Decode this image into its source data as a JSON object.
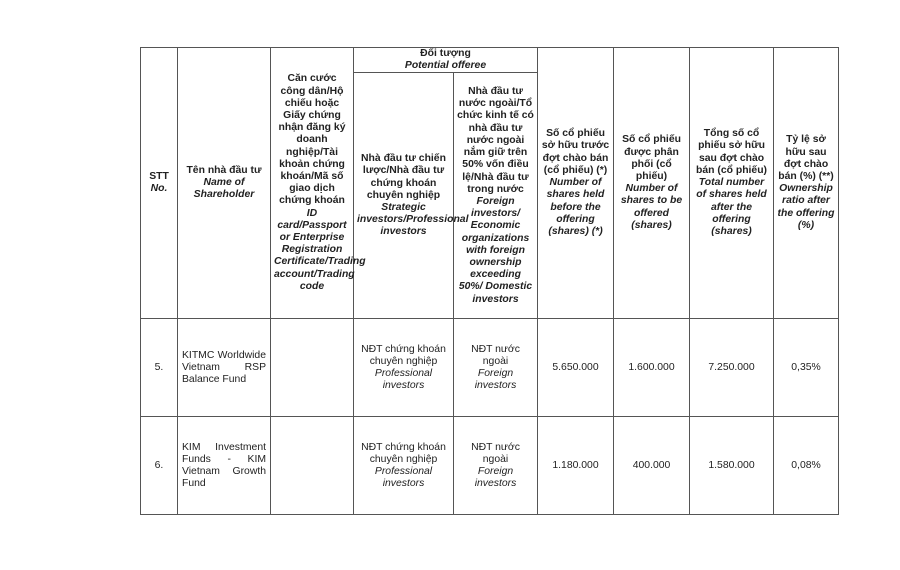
{
  "table": {
    "headers": {
      "stt": {
        "vn": "STT",
        "en": "No."
      },
      "name": {
        "vn": "Tên nhà đầu tư",
        "en": "Name of Shareholder"
      },
      "id": {
        "vn": "Căn cước công dân/Hộ chiếu hoặc Giấy chứng nhận đăng ký doanh nghiệp/Tài khoản chứng khoán/Mã số giao dịch chứng khoán",
        "en": "ID card/Passport or Enterprise Registration Certificate/Trading account/Trading code"
      },
      "offeree": {
        "vn": "Đối tượng",
        "en": "Potential offeree"
      },
      "strategic": {
        "vn": "Nhà đầu tư chiến lược/Nhà đầu tư chứng khoán chuyên nghiệp",
        "en": "Strategic investors/Professional investors"
      },
      "foreign": {
        "vn": "Nhà đầu tư nước ngoài/Tổ chức kinh tế có nhà đầu tư nước ngoài nắm giữ trên 50% vốn điều lệ/Nhà đầu tư trong nước",
        "en": "Foreign investors/ Economic organizations with foreign ownership exceeding 50%/ Domestic investors"
      },
      "before": {
        "vn": "Số cổ phiếu sở hữu trước đợt chào bán (cổ phiếu) (*)",
        "en": "Number of shares held before the offering (shares) (*)"
      },
      "offered": {
        "vn": "Số cổ phiếu được phân phối (cổ phiếu)",
        "en": "Number of shares to be offered (shares)"
      },
      "total": {
        "vn": "Tổng số cổ phiếu sở hữu sau đợt chào bán (cổ phiếu)",
        "en": "Total number of shares held after the offering (shares)"
      },
      "ratio": {
        "vn": "Tỷ lệ sở hữu sau đợt chào bán (%) (**)",
        "en": "Ownership ratio after the offering (%)"
      }
    },
    "rows": [
      {
        "stt": "5.",
        "name": "KITMC Worldwide Vietnam RSP Balance Fund",
        "id": "",
        "strategic_vn": "NĐT chứng khoán chuyên nghiệp",
        "strategic_en": "Professional investors",
        "foreign_vn": "NĐT nước ngoài",
        "foreign_en": "Foreign investors",
        "before": "5.650.000",
        "offered": "1.600.000",
        "total": "7.250.000",
        "ratio": "0,35%"
      },
      {
        "stt": "6.",
        "name": "KIM Investment Funds - KIM Vietnam Growth Fund",
        "id": "",
        "strategic_vn": "NĐT chứng khoán chuyên nghiệp",
        "strategic_en": "Professional investors",
        "foreign_vn": "NĐT nước ngoài",
        "foreign_en": "Foreign investors",
        "before": "1.180.000",
        "offered": "400.000",
        "total": "1.580.000",
        "ratio": "0,08%"
      }
    ]
  }
}
